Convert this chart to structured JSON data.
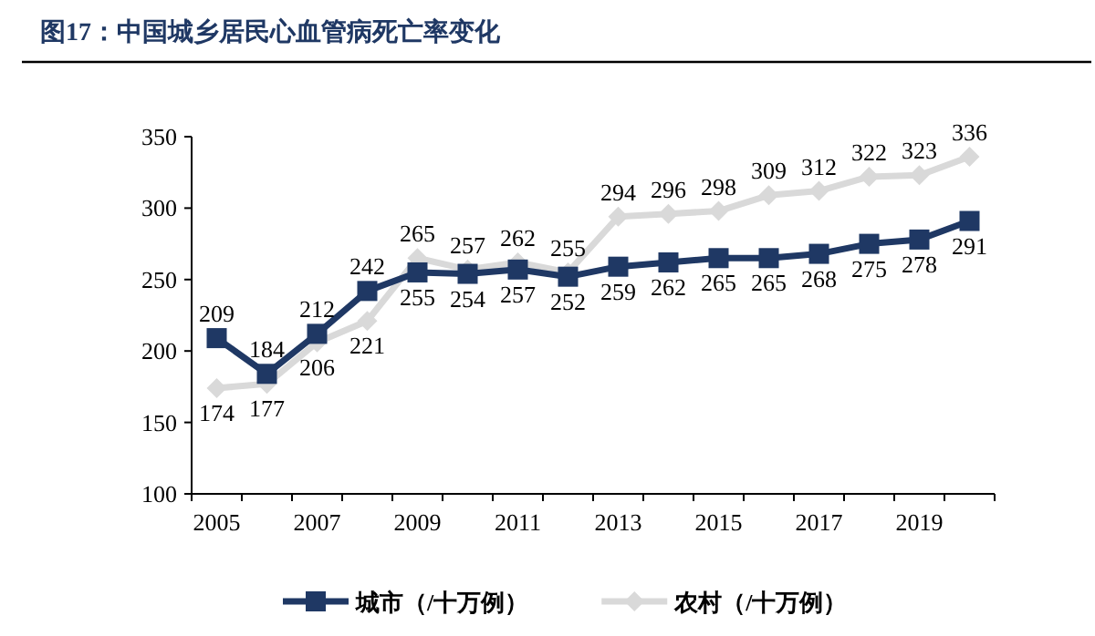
{
  "chart_data": {
    "type": "line",
    "title": "图17：中国城乡居民心血管病死亡率变化",
    "categories": [
      "2005",
      null,
      "2007",
      null,
      "2009",
      null,
      "2011",
      null,
      "2013",
      null,
      "2015",
      null,
      "2017",
      null,
      "2019",
      null
    ],
    "series": [
      {
        "name": "城市（/十万例）",
        "color": "#1f3864",
        "marker": "square",
        "values": [
          209,
          184,
          212,
          242,
          255,
          254,
          257,
          252,
          259,
          262,
          265,
          265,
          268,
          275,
          278,
          291
        ]
      },
      {
        "name": "农村（/十万例）",
        "color": "#d9d9d9",
        "marker": "diamond",
        "values": [
          174,
          177,
          206,
          221,
          265,
          257,
          262,
          255,
          294,
          296,
          298,
          309,
          312,
          322,
          323,
          336
        ]
      }
    ],
    "ylim": [
      100,
      350
    ],
    "yticks": [
      100,
      150,
      200,
      250,
      300,
      350
    ],
    "grid": false,
    "legend": "bottom",
    "data_labels": true,
    "line_style": "solid"
  }
}
